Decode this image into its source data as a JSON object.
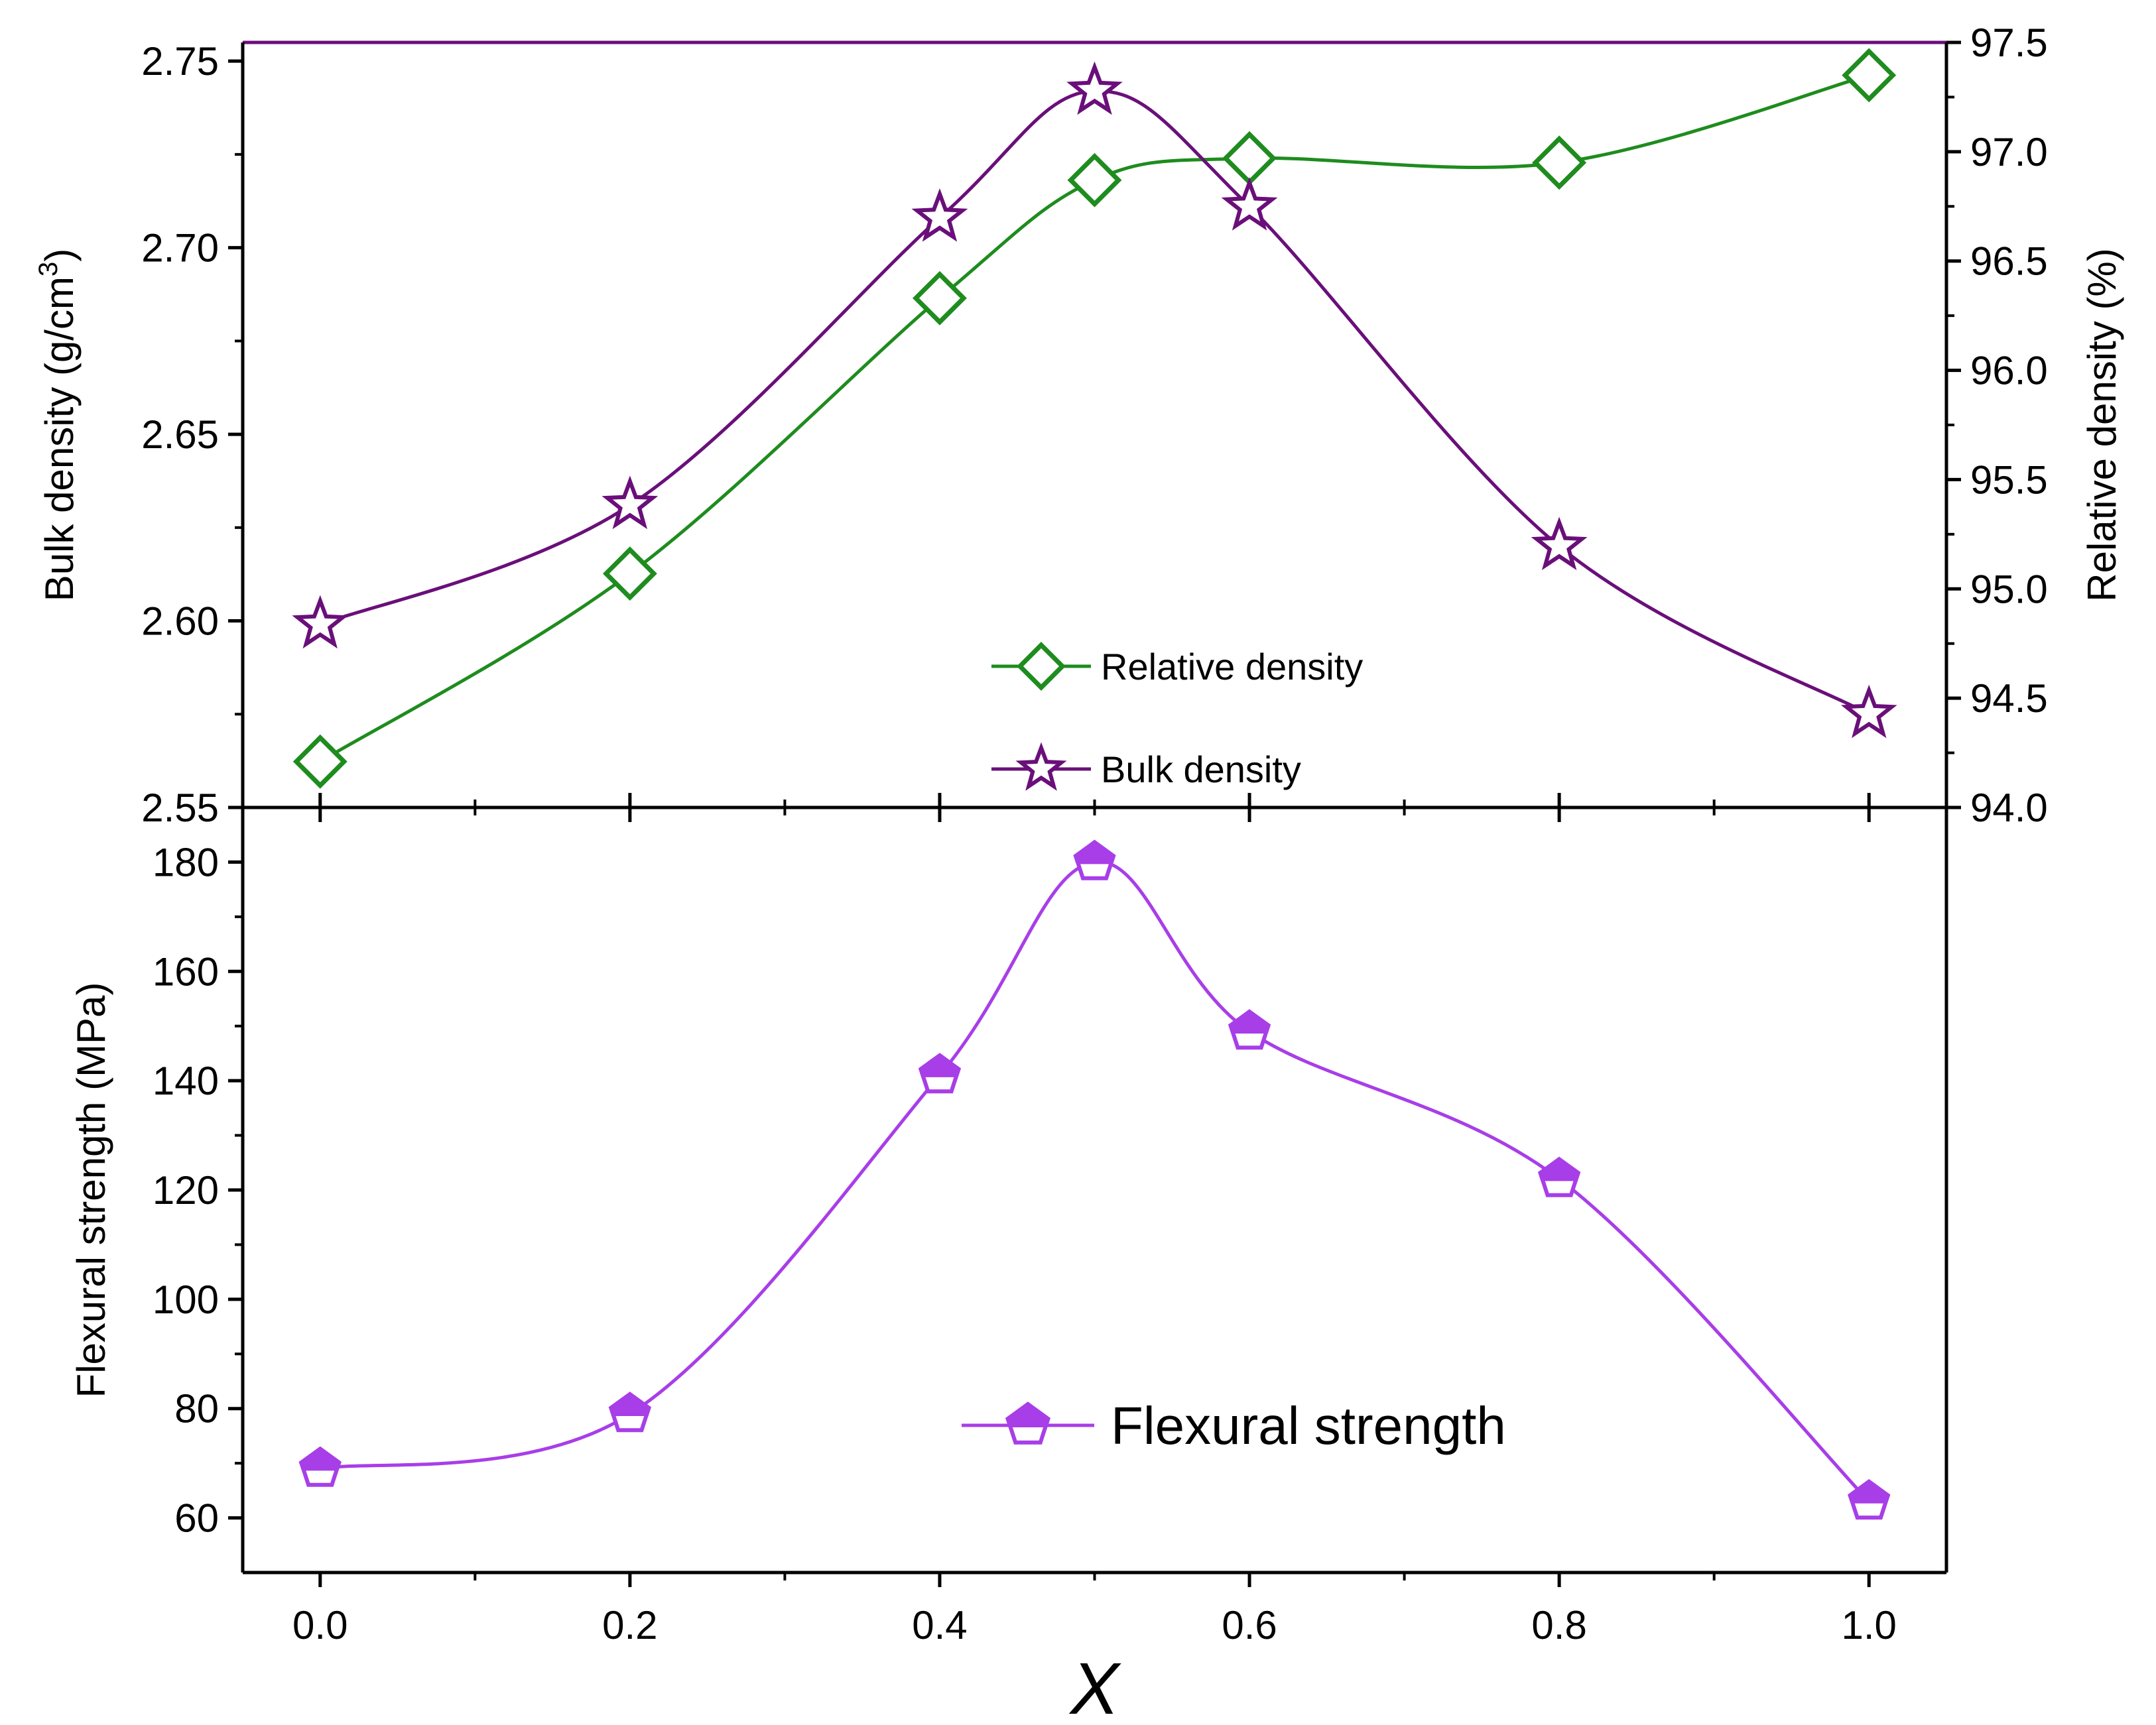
{
  "chart_data": [
    {
      "type": "line",
      "panel": "top",
      "x": [
        0.0,
        0.2,
        0.4,
        0.5,
        0.6,
        0.8,
        1.0
      ],
      "series": [
        {
          "name": "Relative density",
          "axis": "right",
          "values": [
            94.21,
            95.07,
            96.33,
            96.87,
            96.97,
            96.95,
            97.35
          ],
          "color": "#1e8c1e",
          "marker": "diamond"
        },
        {
          "name": "Bulk density",
          "axis": "left",
          "values": [
            2.599,
            2.631,
            2.708,
            2.742,
            2.711,
            2.62,
            2.575
          ],
          "color": "#6a0f7a",
          "marker": "star"
        }
      ],
      "ylabel_left": "Bulk density (g/cm",
      "ylabel_left_sup": "3",
      "ylabel_left_close": ")",
      "ylabel_right": "Relative density (%)",
      "ylim_left": [
        2.55,
        2.755
      ],
      "ylim_right": [
        94.0,
        97.5
      ],
      "yticks_left": [
        "2.55",
        "2.60",
        "2.65",
        "2.70",
        "2.75"
      ],
      "yticks_right": [
        "94.0",
        "94.5",
        "95.0",
        "95.5",
        "96.0",
        "96.5",
        "97.0",
        "97.5"
      ],
      "legend": [
        "Relative density",
        "Bulk density"
      ]
    },
    {
      "type": "line",
      "panel": "bottom",
      "x": [
        0.0,
        0.2,
        0.4,
        0.5,
        0.6,
        0.8,
        1.0
      ],
      "series": [
        {
          "name": "Flexural strength",
          "axis": "left",
          "values": [
            69,
            79,
            141,
            180,
            149,
            122,
            63
          ],
          "color": "#a83ee8",
          "marker": "pentagon"
        }
      ],
      "ylabel": "Flexural strength (MPa)",
      "ylim": [
        50,
        190
      ],
      "yticks": [
        "60",
        "80",
        "100",
        "120",
        "140",
        "160",
        "180"
      ],
      "xlabel": "X",
      "xlim": [
        -0.05,
        1.05
      ],
      "xticks": [
        "0.0",
        "0.2",
        "0.4",
        "0.6",
        "0.8",
        "1.0"
      ],
      "legend": [
        "Flexural strength"
      ]
    }
  ]
}
